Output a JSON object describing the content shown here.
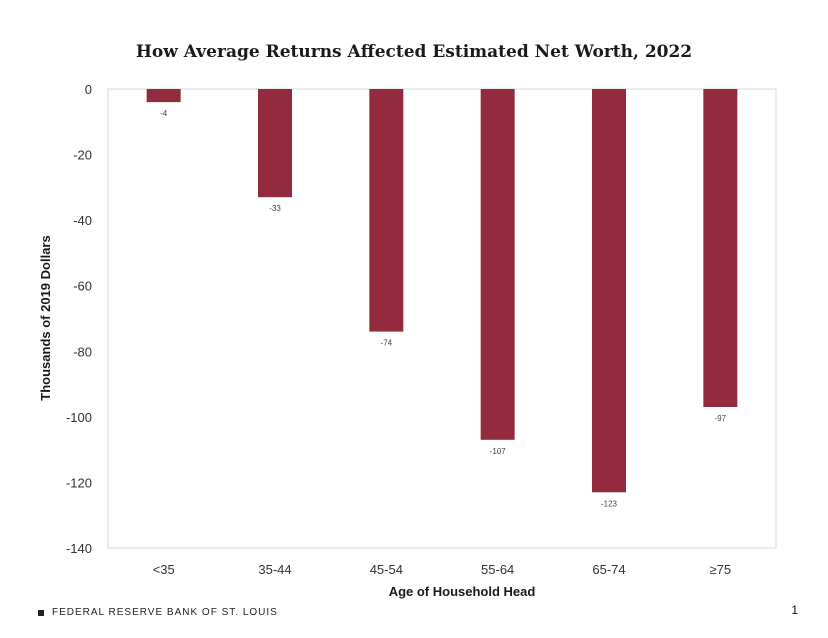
{
  "chart_data": {
    "type": "bar",
    "title": "How Average Returns Affected Estimated Net Worth, 2022",
    "xlabel": "Age of Household Head",
    "ylabel": "Thousands  of 2019 Dollars",
    "categories": [
      "<35",
      "35-44",
      "45-54",
      "55-64",
      "65-74",
      "≥75"
    ],
    "values": [
      -4,
      -33,
      -74,
      -107,
      -123,
      -97
    ],
    "data_labels": [
      "-4",
      "-33",
      "-74",
      "-107",
      "-123",
      "-97"
    ],
    "ylim": [
      -140,
      0
    ],
    "yticks": [
      0,
      -20,
      -40,
      -60,
      -80,
      -100,
      -120,
      -140
    ],
    "bar_color": "#922b3e",
    "grid": false,
    "legend": "none"
  },
  "footer": {
    "brand": "FEDERAL RESERVE BANK OF ST. LOUIS",
    "page_number": "1"
  }
}
